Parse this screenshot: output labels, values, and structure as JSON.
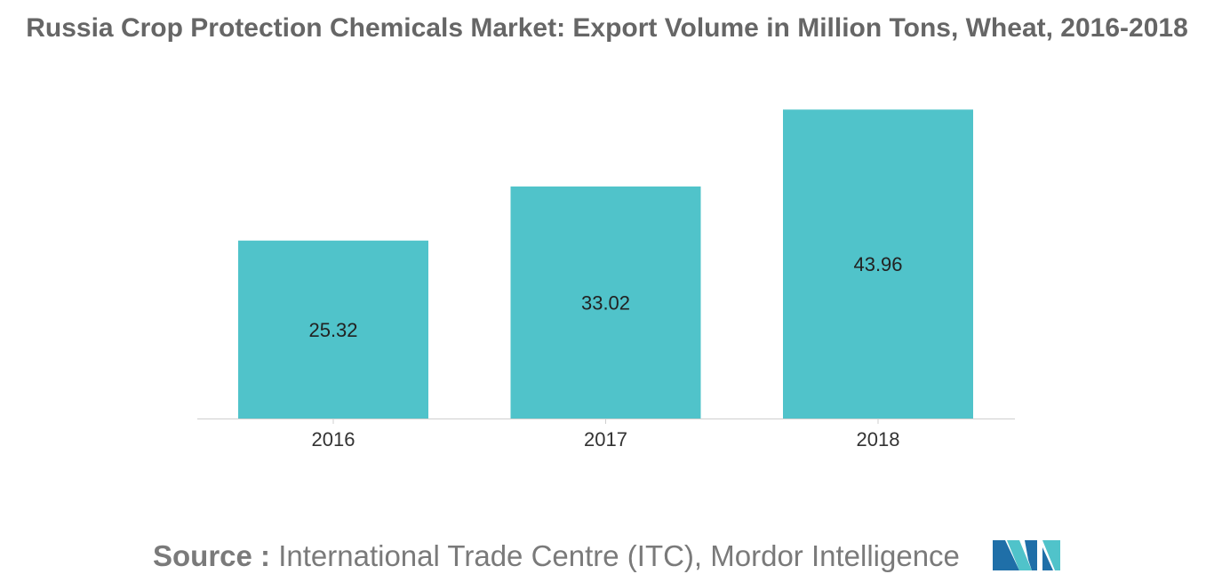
{
  "chart_data": {
    "type": "bar",
    "title": "Russia Crop Protection Chemicals Market: Export Volume in Million Tons, Wheat, 2016-2018",
    "categories": [
      "2016",
      "2017",
      "2018"
    ],
    "values": [
      25.32,
      33.02,
      43.96
    ],
    "value_labels": [
      "25.32",
      "33.02",
      "43.96"
    ],
    "xlabel": "",
    "ylabel": "",
    "ylim": [
      0,
      44
    ],
    "grid": false,
    "legend": "none",
    "bar_color": "#50C3CA"
  },
  "source": {
    "label": "Source :",
    "text": " International Trade Centre (ITC), Mordor Intelligence"
  },
  "logo": {
    "icon": "mordor-intelligence-logo-icon",
    "colors": [
      "#1F6FA8",
      "#50C3CA"
    ]
  }
}
